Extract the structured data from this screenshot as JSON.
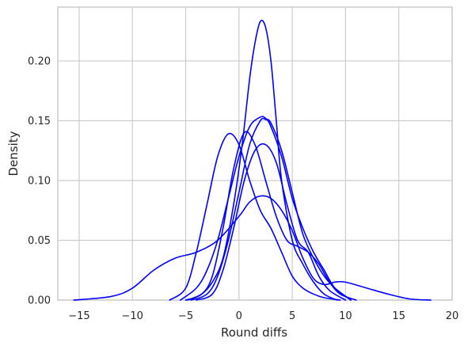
{
  "chart_data": {
    "type": "line",
    "title": "",
    "xlabel": "Round diffs",
    "ylabel": "Density",
    "xlim": [
      -17,
      20
    ],
    "ylim": [
      0,
      0.245
    ],
    "xticks": [
      -15,
      -10,
      -5,
      0,
      5,
      10,
      15,
      20
    ],
    "xtick_labels": [
      "−15",
      "−10",
      "−5",
      "0",
      "5",
      "10",
      "15",
      "20"
    ],
    "yticks": [
      0,
      0.05,
      0.1,
      0.15,
      0.2
    ],
    "ytick_labels": [
      "0.00",
      "0.05",
      "0.10",
      "0.15",
      "0.20"
    ],
    "grid": true,
    "legend": "none",
    "line_color": "#0000ff",
    "grid_color": "#cccccc",
    "series": [
      {
        "x": [
          -4.8,
          -3.5,
          -2.5,
          -1.5,
          -0.5,
          0.3,
          1.0,
          1.5,
          2.0,
          2.5,
          3.0,
          3.5,
          4.0,
          5.0,
          6.0,
          7.0,
          8.0,
          9.2
        ],
        "y": [
          0.0,
          0.005,
          0.015,
          0.035,
          0.08,
          0.13,
          0.185,
          0.215,
          0.233,
          0.228,
          0.2,
          0.15,
          0.1,
          0.05,
          0.03,
          0.015,
          0.005,
          0.0
        ]
      },
      {
        "x": [
          -5.5,
          -4.0,
          -3.0,
          -2.0,
          -1.0,
          0.0,
          1.0,
          2.0,
          2.5,
          3.0,
          4.0,
          5.0,
          6.0,
          7.0,
          8.0,
          9.0,
          10.5
        ],
        "y": [
          0.0,
          0.01,
          0.025,
          0.05,
          0.085,
          0.12,
          0.145,
          0.153,
          0.152,
          0.145,
          0.12,
          0.085,
          0.06,
          0.04,
          0.025,
          0.01,
          0.0
        ]
      },
      {
        "x": [
          -6.5,
          -5.0,
          -4.0,
          -3.0,
          -2.0,
          -1.0,
          0.0,
          1.0,
          2.0,
          3.0,
          4.0,
          5.0,
          6.0,
          7.0,
          8.0,
          9.5
        ],
        "y": [
          0.0,
          0.01,
          0.04,
          0.08,
          0.12,
          0.139,
          0.13,
          0.1,
          0.075,
          0.06,
          0.04,
          0.02,
          0.01,
          0.005,
          0.002,
          0.0
        ]
      },
      {
        "x": [
          -4.5,
          -3.0,
          -2.0,
          -1.0,
          0.0,
          1.0,
          2.0,
          2.5,
          3.0,
          4.0,
          5.0,
          6.0,
          7.0,
          8.0,
          9.0,
          10.5
        ],
        "y": [
          0.0,
          0.005,
          0.02,
          0.05,
          0.09,
          0.13,
          0.15,
          0.151,
          0.148,
          0.125,
          0.09,
          0.055,
          0.035,
          0.02,
          0.01,
          0.0
        ]
      },
      {
        "x": [
          -5.0,
          -3.5,
          -2.5,
          -1.5,
          -0.5,
          0.5,
          1.5,
          2.5,
          3.5,
          4.5,
          5.5,
          6.5,
          7.5,
          8.5,
          9.5,
          11.0
        ],
        "y": [
          0.0,
          0.005,
          0.02,
          0.06,
          0.11,
          0.14,
          0.13,
          0.1,
          0.07,
          0.05,
          0.045,
          0.04,
          0.03,
          0.015,
          0.005,
          0.0
        ]
      },
      {
        "x": [
          -4.0,
          -2.5,
          -1.5,
          -0.5,
          0.5,
          1.5,
          2.5,
          3.5,
          4.5,
          5.5,
          6.5,
          7.5,
          8.5,
          10.0
        ],
        "y": [
          0.0,
          0.005,
          0.025,
          0.06,
          0.1,
          0.125,
          0.13,
          0.115,
          0.08,
          0.05,
          0.04,
          0.02,
          0.008,
          0.0
        ]
      },
      {
        "x": [
          -15.5,
          -12.0,
          -10.0,
          -8.0,
          -6.0,
          -4.0,
          -2.0,
          0.0,
          1.0,
          2.0,
          3.0,
          4.0,
          5.0,
          6.0,
          7.0,
          8.0,
          9.0,
          10.0,
          12.0,
          14.0,
          16.0,
          18.0
        ],
        "y": [
          0.0,
          0.003,
          0.01,
          0.025,
          0.035,
          0.04,
          0.05,
          0.07,
          0.082,
          0.087,
          0.085,
          0.075,
          0.058,
          0.035,
          0.018,
          0.013,
          0.015,
          0.015,
          0.01,
          0.005,
          0.001,
          0.0
        ]
      }
    ]
  }
}
